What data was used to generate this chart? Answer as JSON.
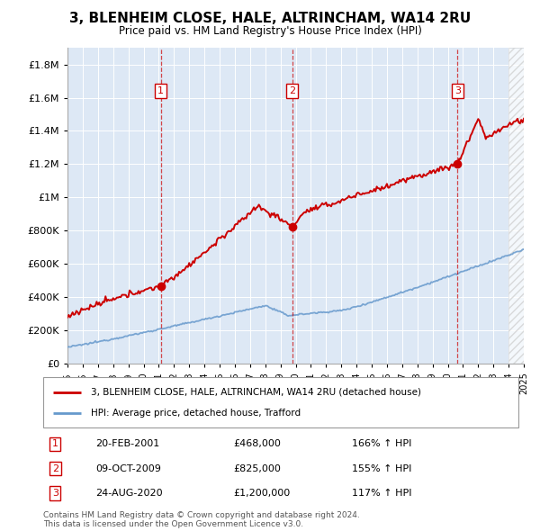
{
  "title": "3, BLENHEIM CLOSE, HALE, ALTRINCHAM, WA14 2RU",
  "subtitle": "Price paid vs. HM Land Registry's House Price Index (HPI)",
  "ytick_values": [
    0,
    200000,
    400000,
    600000,
    800000,
    1000000,
    1200000,
    1400000,
    1600000,
    1800000
  ],
  "ylim": [
    0,
    1900000
  ],
  "xstart_year": 1995,
  "xend_year": 2025,
  "background_color": "#dde8f5",
  "legend_line1": "3, BLENHEIM CLOSE, HALE, ALTRINCHAM, WA14 2RU (detached house)",
  "legend_line2": "HPI: Average price, detached house, Trafford",
  "sale1_date": "20-FEB-2001",
  "sale1_price": "£468,000",
  "sale1_hpi": "166% ↑ HPI",
  "sale1_year": 2001.13,
  "sale1_price_val": 468000,
  "sale2_date": "09-OCT-2009",
  "sale2_price": "£825,000",
  "sale2_hpi": "155% ↑ HPI",
  "sale2_year": 2009.78,
  "sale2_price_val": 825000,
  "sale3_date": "24-AUG-2020",
  "sale3_price": "£1,200,000",
  "sale3_hpi": "117% ↑ HPI",
  "sale3_year": 2020.65,
  "sale3_price_val": 1200000,
  "footer": "Contains HM Land Registry data © Crown copyright and database right 2024.\nThis data is licensed under the Open Government Licence v3.0.",
  "red_color": "#cc0000",
  "blue_color": "#6699cc"
}
